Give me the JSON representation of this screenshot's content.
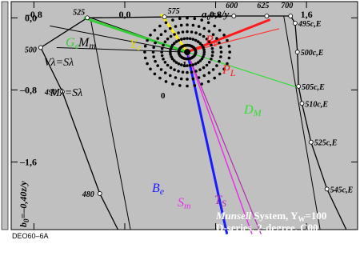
{
  "chart_data": {
    "type": "line",
    "axes": {
      "x_label": "a0=x/y",
      "x_label_parts": [
        "a",
        "0",
        "=x/y"
      ],
      "y_label": "b0=-0,40z/y",
      "y_label_parts": [
        "b",
        "0",
        "=–0,40z/y"
      ],
      "xlim": [
        -1.0,
        2.05
      ],
      "ylim": [
        -2.35,
        0.18
      ],
      "x_ticks": [
        -0.8,
        0.0,
        0.8,
        1.6
      ],
      "x_tick_labels": [
        "–0,8",
        "0,0",
        "0,8",
        "1,6"
      ],
      "y_ticks": [
        0.0,
        -0.8,
        -1.6,
        -2.4
      ],
      "y_tick_labels": [
        "0,0",
        "–0,8",
        "–1,6",
        "b0=–0,40z/y"
      ]
    },
    "spectral_locus": {
      "name": "spectral locus",
      "labels": [
        "480",
        "490",
        "500",
        "525",
        "575",
        "600",
        "625",
        "700"
      ],
      "points": [
        {
          "label": "480",
          "x": -0.22,
          "y": -1.95
        },
        {
          "label": "490",
          "x": -0.55,
          "y": -0.82
        },
        {
          "label": "500",
          "x": -0.74,
          "y": -0.33
        },
        {
          "label": "525",
          "x": -0.33,
          "y": 0.0
        },
        {
          "label": "575",
          "x": 0.35,
          "y": 0.01
        },
        {
          "label": "600",
          "x": 0.96,
          "y": 0.02
        },
        {
          "label": "625",
          "x": 1.25,
          "y": 0.02
        },
        {
          "label": "700",
          "x": 1.46,
          "y": 0.02
        }
      ]
    },
    "purple_line_labels": [
      "495c,E",
      "500c,E",
      "505c,E",
      "510c,E",
      "525c,E",
      "545c,E"
    ],
    "purple_line_points": [
      {
        "label": "495c,E",
        "x": 1.5,
        "y": -0.06
      },
      {
        "label": "500c,E",
        "x": 1.52,
        "y": -0.38
      },
      {
        "label": "505c,E",
        "x": 1.53,
        "y": -0.76
      },
      {
        "label": "510c,E",
        "x": 1.56,
        "y": -0.95
      },
      {
        "label": "525c,E",
        "x": 1.64,
        "y": -1.38
      },
      {
        "label": "545c,E",
        "x": 1.78,
        "y": -1.9
      }
    ],
    "white_point": {
      "x": 0.55,
      "y": -0.38
    },
    "hue_lines": [
      {
        "name": "Re",
        "color": "#ff1a1a",
        "to": {
          "x": 1.28,
          "y": -0.02
        },
        "width": 3
      },
      {
        "name": "PL",
        "color": "#ff3333",
        "to": {
          "x": 1.36,
          "y": -0.12
        },
        "width": 1.2
      },
      {
        "name": "Ge",
        "color": "#33cc33",
        "to": {
          "x": -0.36,
          "y": 0.0
        },
        "width": 3
      },
      {
        "name": "Ye",
        "color": "#ffee00",
        "to": {
          "x": 0.32,
          "y": 0.04
        },
        "width": 3
      },
      {
        "name": "DM",
        "color": "#33dd33",
        "to": {
          "x": 1.54,
          "y": -0.78
        },
        "width": 1.2
      },
      {
        "name": "Be",
        "color": "#1a1aff",
        "to": {
          "x": 0.9,
          "y": -2.4
        },
        "width": 3
      },
      {
        "name": "Sm",
        "color": "#e633e6",
        "to": {
          "x": 1.12,
          "y": -2.4
        },
        "width": 1.5
      },
      {
        "name": "TS",
        "color": "#b02db0",
        "to": {
          "x": 1.2,
          "y": -2.4
        },
        "width": 1.2
      }
    ],
    "black_lines": [
      {
        "name": "Mm",
        "to": {
          "x": -0.3,
          "y": 0.0
        }
      },
      {
        "name": "V-lambda",
        "to": {
          "x": -0.66,
          "y": -0.09
        }
      },
      {
        "name": "M-lambda",
        "to": {
          "x": -0.6,
          "y": -0.33
        }
      }
    ],
    "annotations": {
      "Ge": {
        "base": "G",
        "sub": "e",
        "color": "#33cc33"
      },
      "Mm": {
        "base": "M",
        "sub": "m",
        "color": "#000000"
      },
      "Ye": {
        "base": "Y",
        "sub": "e",
        "color": "#e6d600"
      },
      "Re": {
        "base": "R",
        "sub": "e",
        "color": "#ff1a1a"
      },
      "PL": {
        "base": "P",
        "sub": "L",
        "color": "#ff1a1a"
      },
      "DM": {
        "base": "D",
        "sub": "M",
        "color": "#33dd33"
      },
      "Be": {
        "base": "B",
        "sub": "e",
        "color": "#1a1aff"
      },
      "Sm": {
        "base": "S",
        "sub": "m",
        "color": "#e633e6"
      },
      "TS": {
        "base": "T",
        "sub": "S",
        "color": "#b02db0"
      },
      "V_lambda": "Vλ=Sλ",
      "M_lambda": "Mλ=Sλ",
      "num_1": "1",
      "num_0": "0"
    },
    "info_text": {
      "line1_italic": "Munsell",
      "line1_rest": " System, Y",
      "line1_sub": "W",
      "line1_end": "=100",
      "line2": "D-series,  2-degree, C00",
      "line3": "chromaticity diagram (a, b)"
    },
    "grid": false
  },
  "footer": {
    "code": "DEO60–6A"
  },
  "colors": {
    "background_panel": "#c0c0c0",
    "frame": "#000000",
    "page": "#ffffff"
  }
}
